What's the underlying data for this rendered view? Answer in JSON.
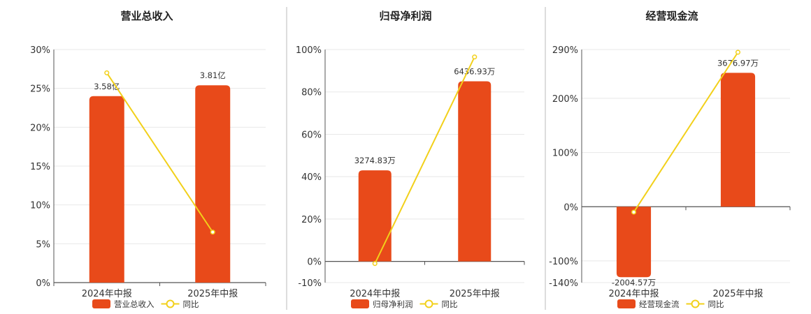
{
  "colors": {
    "bar": "#E84A1A",
    "line": "#F2D01A",
    "grid": "#e8e8e8",
    "axis": "#555555",
    "divider": "#bbbbbb"
  },
  "chart_data": [
    {
      "type": "bar",
      "title": "营业总收入",
      "categories": [
        "2024年中报",
        "2025年中报"
      ],
      "series": [
        {
          "name": "营业总收入",
          "type": "bar",
          "values": [
            3.58,
            3.81
          ],
          "value_labels": [
            "3.58亿",
            "3.81亿"
          ]
        },
        {
          "name": "同比",
          "type": "line",
          "values": [
            27.0,
            6.5
          ]
        }
      ],
      "ylim": [
        0,
        30
      ],
      "yticks": [
        0,
        5,
        10,
        15,
        20,
        25,
        30
      ],
      "ytick_labels": [
        "0%",
        "5%",
        "10%",
        "15%",
        "20%",
        "25%",
        "30%"
      ],
      "bar_positions_pct": [
        24.0,
        25.4
      ],
      "grid": true,
      "legend_position": "bottom"
    },
    {
      "type": "bar",
      "title": "归母净利润",
      "categories": [
        "2024年中报",
        "2025年中报"
      ],
      "series": [
        {
          "name": "归母净利润",
          "type": "bar",
          "values": [
            3274.83,
            6436.93
          ],
          "value_labels": [
            "3274.83万",
            "6436.93万"
          ]
        },
        {
          "name": "同比",
          "type": "line",
          "values": [
            -1.0,
            96.5
          ]
        }
      ],
      "ylim": [
        -10,
        100
      ],
      "yticks": [
        -10,
        0,
        20,
        40,
        60,
        80,
        100
      ],
      "ytick_labels": [
        "-10%",
        "0%",
        "20%",
        "40%",
        "60%",
        "80%",
        "100%"
      ],
      "bar_positions_pct": [
        43.0,
        85.0
      ],
      "grid": true,
      "legend_position": "bottom"
    },
    {
      "type": "bar",
      "title": "经营现金流",
      "categories": [
        "2024年中报",
        "2025年中报"
      ],
      "series": [
        {
          "name": "经营现金流",
          "type": "bar",
          "values": [
            -2004.57,
            3676.97
          ],
          "value_labels": [
            "-2004.57万",
            "3676.97万"
          ]
        },
        {
          "name": "同比",
          "type": "line",
          "values": [
            -10.0,
            285.0
          ]
        }
      ],
      "ylim": [
        -140,
        290
      ],
      "yticks": [
        -140,
        -100,
        0,
        100,
        200,
        290
      ],
      "ytick_labels": [
        "-140%",
        "-100%",
        "0%",
        "100%",
        "200%",
        "290%"
      ],
      "bar_positions_pct": [
        -130.0,
        247.0
      ],
      "grid": true,
      "legend_position": "bottom"
    }
  ]
}
